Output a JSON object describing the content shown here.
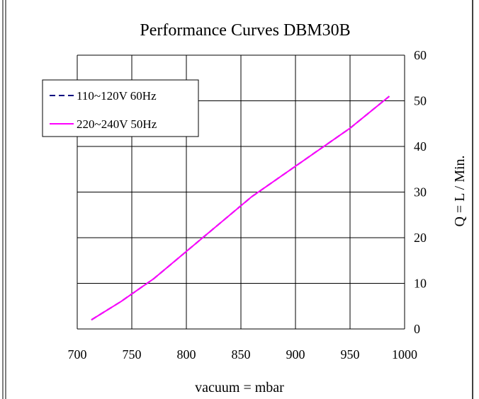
{
  "chart_data": {
    "type": "line",
    "title": "Performance Curves DBM30B",
    "xlabel": "vacuum = mbar",
    "ylabel": "Q = L / Min.",
    "xlim": [
      700,
      1000
    ],
    "ylim": [
      0,
      60
    ],
    "x_ticks": [
      "700",
      "750",
      "800",
      "850",
      "900",
      "950",
      "1000"
    ],
    "y_ticks": [
      "0",
      "10",
      "20",
      "30",
      "40",
      "50",
      "60"
    ],
    "y_axis_side": "right",
    "grid": true,
    "legend_position": "top-left",
    "series": [
      {
        "name": "110~120V 60Hz",
        "color": "#000080",
        "style": "dashed",
        "x": [
          713,
          740,
          770,
          800,
          830,
          860,
          890,
          920,
          950,
          986
        ],
        "y": [
          2,
          6,
          11,
          17,
          23,
          29,
          34,
          39,
          44,
          51
        ]
      },
      {
        "name": "220~240V 50Hz",
        "color": "#ff00ff",
        "style": "solid",
        "x": [
          713,
          740,
          770,
          800,
          830,
          860,
          890,
          920,
          950,
          986
        ],
        "y": [
          2,
          6,
          11,
          17,
          23,
          29,
          34,
          39,
          44,
          51
        ]
      }
    ]
  }
}
